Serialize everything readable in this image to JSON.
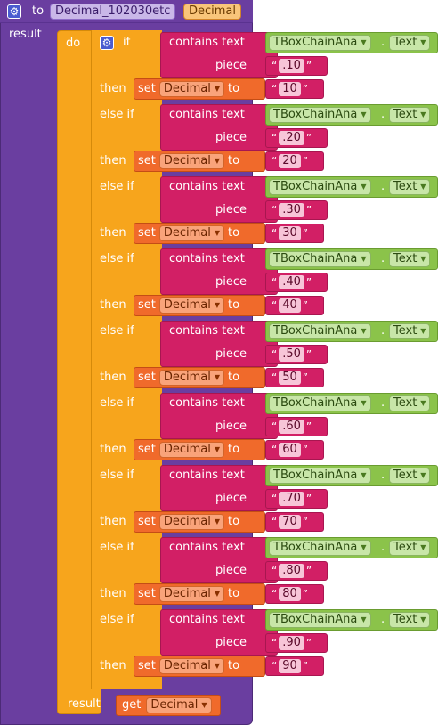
{
  "procedure": {
    "to_label": "to",
    "name": "Decimal_102030etc",
    "param": "Decimal",
    "result_label": "result"
  },
  "do_label": "do",
  "if_label": "if",
  "then_label": "then",
  "else_if_label": "else if",
  "contains_label": "contains text",
  "piece_label": "piece",
  "set_label": "set",
  "to_label": "to",
  "quote_open": "“",
  "quote_close": "”",
  "component": "TBoxChainAna",
  "property": "Text",
  "variable": "Decimal",
  "clauses": [
    {
      "keyword": "if",
      "piece": ".10",
      "value": "10"
    },
    {
      "keyword": "else if",
      "piece": ".20",
      "value": "20"
    },
    {
      "keyword": "else if",
      "piece": ".30",
      "value": "30"
    },
    {
      "keyword": "else if",
      "piece": ".40",
      "value": "40"
    },
    {
      "keyword": "else if",
      "piece": ".50",
      "value": "50"
    },
    {
      "keyword": "else if",
      "piece": ".60",
      "value": "60"
    },
    {
      "keyword": "else if",
      "piece": ".70",
      "value": "70"
    },
    {
      "keyword": "else if",
      "piece": ".80",
      "value": "80"
    },
    {
      "keyword": "else if",
      "piece": ".90",
      "value": "90"
    }
  ],
  "bottom": {
    "result_label": "result",
    "get_label": "get",
    "variable": "Decimal"
  },
  "colors": {
    "procedure": "#6a3ea0",
    "control": "#f7a51c",
    "text": "#d21f65",
    "component": "#8bc34a",
    "variable": "#f06a2b"
  }
}
